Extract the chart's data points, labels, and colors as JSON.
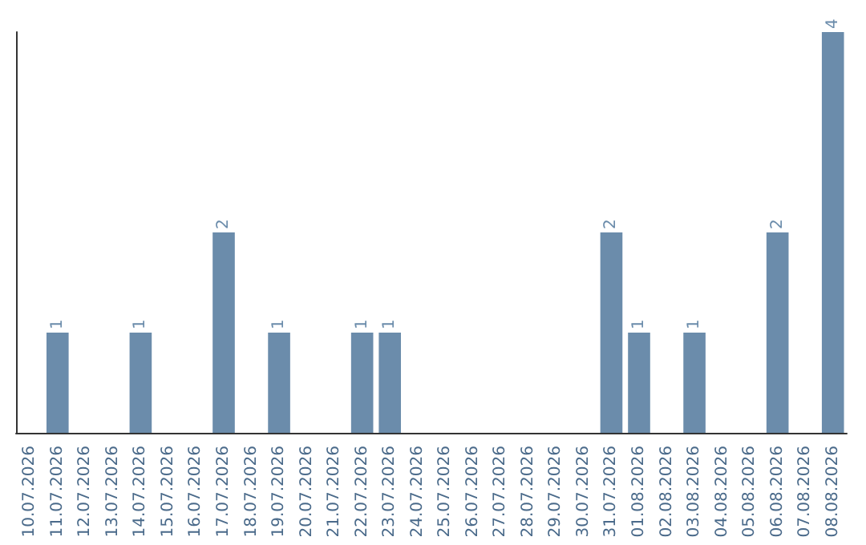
{
  "chart_data": {
    "type": "bar",
    "categories": [
      "10.07.2026",
      "11.07.2026",
      "12.07.2026",
      "13.07.2026",
      "14.07.2026",
      "15.07.2026",
      "16.07.2026",
      "17.07.2026",
      "18.07.2026",
      "19.07.2026",
      "20.07.2026",
      "21.07.2026",
      "22.07.2026",
      "23.07.2026",
      "24.07.2026",
      "25.07.2026",
      "26.07.2026",
      "27.07.2026",
      "28.07.2026",
      "29.07.2026",
      "30.07.2026",
      "31.07.2026",
      "01.08.2026",
      "02.08.2026",
      "03.08.2026",
      "04.08.2026",
      "05.08.2026",
      "06.08.2026",
      "07.08.2026",
      "08.08.2026"
    ],
    "values": [
      0,
      1,
      0,
      0,
      1,
      0,
      0,
      2,
      0,
      1,
      0,
      0,
      1,
      1,
      0,
      0,
      0,
      0,
      0,
      0,
      0,
      2,
      1,
      0,
      1,
      0,
      0,
      2,
      0,
      4
    ],
    "value_labels": [
      null,
      "1",
      null,
      null,
      "1",
      null,
      null,
      "2",
      null,
      "1",
      null,
      null,
      "1",
      "1",
      null,
      null,
      null,
      null,
      null,
      null,
      null,
      "2",
      "1",
      null,
      "1",
      null,
      null,
      "2",
      null,
      "4"
    ],
    "color": "#6b8cab"
  }
}
